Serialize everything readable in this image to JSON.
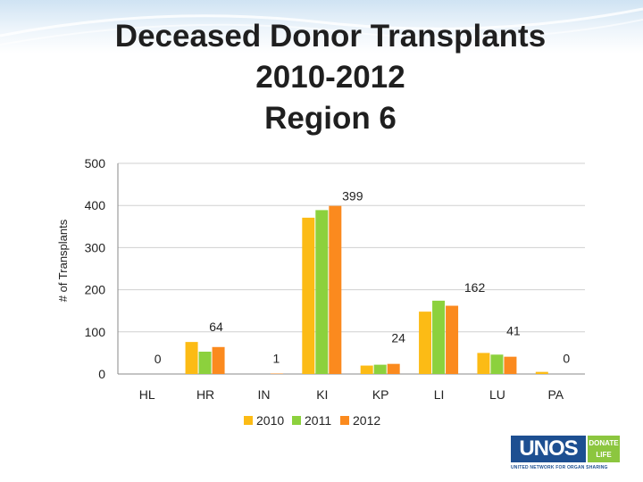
{
  "title_lines": [
    "Deceased Donor Transplants",
    "2010-2012",
    "Region 6"
  ],
  "logo": {
    "main": "UNOS",
    "donate_line1": "DONATE",
    "donate_line2": "LIFE",
    "subtitle": "UNITED NETWORK FOR ORGAN SHARING"
  },
  "colors": {
    "2010": "#fcbb15",
    "2011": "#8cd13d",
    "2012": "#fb8a1e",
    "grid": "#d0d0d0",
    "axis": "#888888",
    "text": "#222222"
  },
  "chart_data": {
    "type": "bar",
    "title": "Deceased Donor Transplants 2010-2012 Region 6",
    "xlabel": "",
    "ylabel": "# of Transplants",
    "ylim": [
      0,
      500
    ],
    "yticks": [
      "0",
      "100",
      "200",
      "300",
      "400",
      "500"
    ],
    "categories": [
      "HL",
      "HR",
      "IN",
      "KI",
      "KP",
      "LI",
      "LU",
      "PA"
    ],
    "series": [
      {
        "name": "2010",
        "values": [
          0,
          76,
          0,
          371,
          20,
          148,
          50,
          5
        ]
      },
      {
        "name": "2011",
        "values": [
          0,
          53,
          0,
          389,
          22,
          174,
          46,
          0
        ]
      },
      {
        "name": "2012",
        "values": [
          0,
          64,
          1,
          399,
          24,
          162,
          41,
          0
        ]
      }
    ],
    "data_labels": [
      "0",
      "64",
      "1",
      "399",
      "24",
      "162",
      "41",
      "0"
    ],
    "legend": [
      "2010",
      "2011",
      "2012"
    ],
    "legend_position": "bottom",
    "grid": true
  }
}
